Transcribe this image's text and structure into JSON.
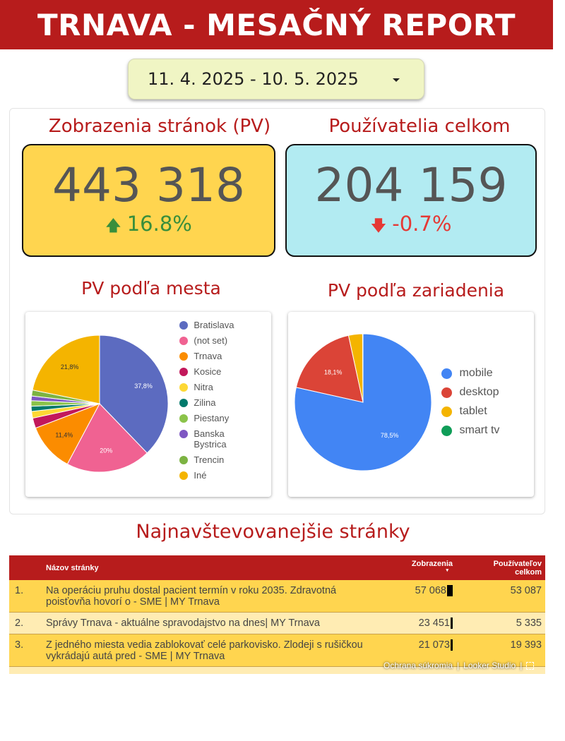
{
  "header": {
    "title": "TRNAVA - MESAČNÝ REPORT"
  },
  "date_range": {
    "label": "11. 4. 2025 - 10. 5. 2025"
  },
  "kpis": [
    {
      "title": "Zobrazenia stránok (PV)",
      "value": "443 318",
      "change": "16.8%",
      "direction": "up",
      "box_color": "#ffd54f",
      "change_color": "#388e3c"
    },
    {
      "title": "Používatelia celkom",
      "value": "204 159",
      "change": "-0.7%",
      "direction": "down",
      "box_color": "#b2ebf2",
      "change_color": "#e53935"
    }
  ],
  "city_chart": {
    "title": "PV podľa mesta",
    "chart_data": {
      "type": "pie",
      "labels": [
        "Bratislava",
        "(not set)",
        "Trnava",
        "Kosice",
        "Nitra",
        "Zilina",
        "Piestany",
        "Banska Bystrica",
        "Trencin",
        "Iné"
      ],
      "legend_labels": [
        [
          "Bratislava"
        ],
        [
          "(not set)"
        ],
        [
          "Trnava"
        ],
        [
          "Kosice"
        ],
        [
          "Nitra"
        ],
        [
          "Zilina"
        ],
        [
          "Piestany"
        ],
        [
          "Banska",
          "Bystrica"
        ],
        [
          "Trencin"
        ],
        [
          "Iné"
        ]
      ],
      "values": [
        37.8,
        20,
        11.4,
        2.4,
        1.6,
        1.2,
        1.3,
        1.1,
        1.4,
        21.8
      ],
      "data_labels": [
        "37,8%",
        "20%",
        "11,4%",
        "",
        "",
        "",
        "",
        "",
        "",
        "21,8%"
      ],
      "colors": [
        "#5c6bc0",
        "#f06292",
        "#fb8c00",
        "#c2185b",
        "#fdd835",
        "#00796b",
        "#8bc34a",
        "#7e57c2",
        "#7cb342",
        "#f4b400"
      ]
    }
  },
  "device_chart": {
    "title": "PV podľa zariadenia",
    "chart_data": {
      "type": "pie",
      "labels": [
        "mobile",
        "desktop",
        "tablet",
        "smart tv"
      ],
      "values": [
        78.5,
        18.1,
        3.3,
        0.1
      ],
      "data_labels": [
        "78,5%",
        "18,1%",
        "",
        ""
      ],
      "colors": [
        "#4285f4",
        "#db4437",
        "#f4b400",
        "#0f9d58"
      ]
    }
  },
  "top_pages": {
    "title": "Najnavštevovanejšie stránky",
    "columns": {
      "name": "Názov stránky",
      "views": "Zobrazenia",
      "users_line1": "Používateľov",
      "users_line2": "celkom"
    },
    "rows": [
      {
        "rank": "1.",
        "lines": [
          "Na operáciu pruhu dostal pacient termín v roku 2035. Zdravotná",
          "poisťovňa hovorí o - SME | MY Trnava"
        ],
        "views": "57 068",
        "views_num": 57068,
        "users": "53 087"
      },
      {
        "rank": "2.",
        "lines": [
          "Správy Trnava - aktuálne spravodajstvo na dnes| MY Trnava"
        ],
        "views": "23 451",
        "views_num": 23451,
        "users": "5 335"
      },
      {
        "rank": "3.",
        "lines": [
          "Z jedného miesta vedia zablokovať celé parkovisko. Zlodeji s rušičkou",
          "vykrádajú autá pred - SME | MY Trnava"
        ],
        "views": "21 073",
        "views_num": 21073,
        "users": "19 393"
      }
    ]
  },
  "footer": {
    "privacy": "Ochrana súkromia",
    "brand": "Looker Studio"
  }
}
